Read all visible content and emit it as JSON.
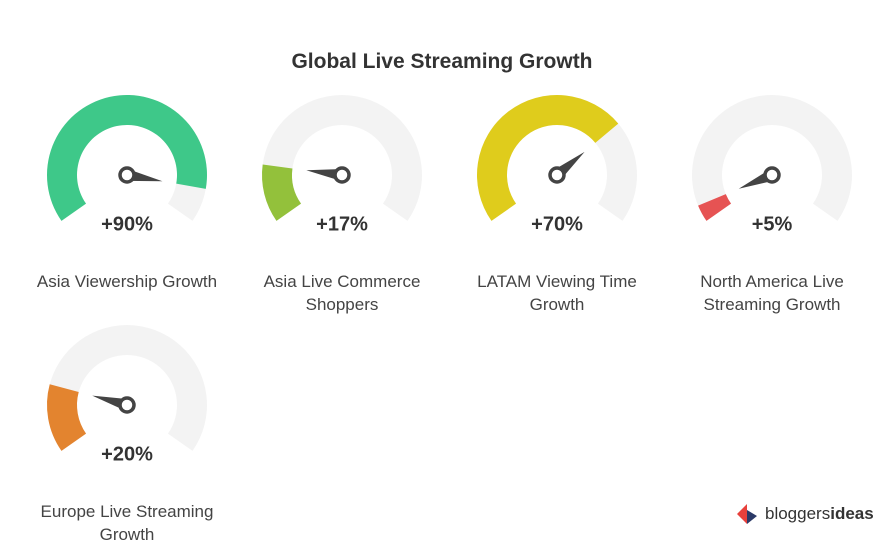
{
  "chart_data": {
    "type": "gauge",
    "title": "Global Live Streaming Growth",
    "categories": [
      "Asia Viewership Growth",
      "Asia Live Commerce Shoppers",
      "LATAM Viewing Time Growth",
      "North America Live Streaming Growth",
      "Europe Live Streaming Growth"
    ],
    "values": [
      90,
      17,
      70,
      5,
      20
    ],
    "value_labels": [
      "+90%",
      "+17%",
      "+70%",
      "+5%",
      "+20%"
    ],
    "colors": [
      "#3ec889",
      "#93c13b",
      "#dfcc1c",
      "#e65353",
      "#e3842f"
    ],
    "ylim": [
      0,
      100
    ]
  },
  "brand": [
    "bloggers",
    "ideas"
  ]
}
